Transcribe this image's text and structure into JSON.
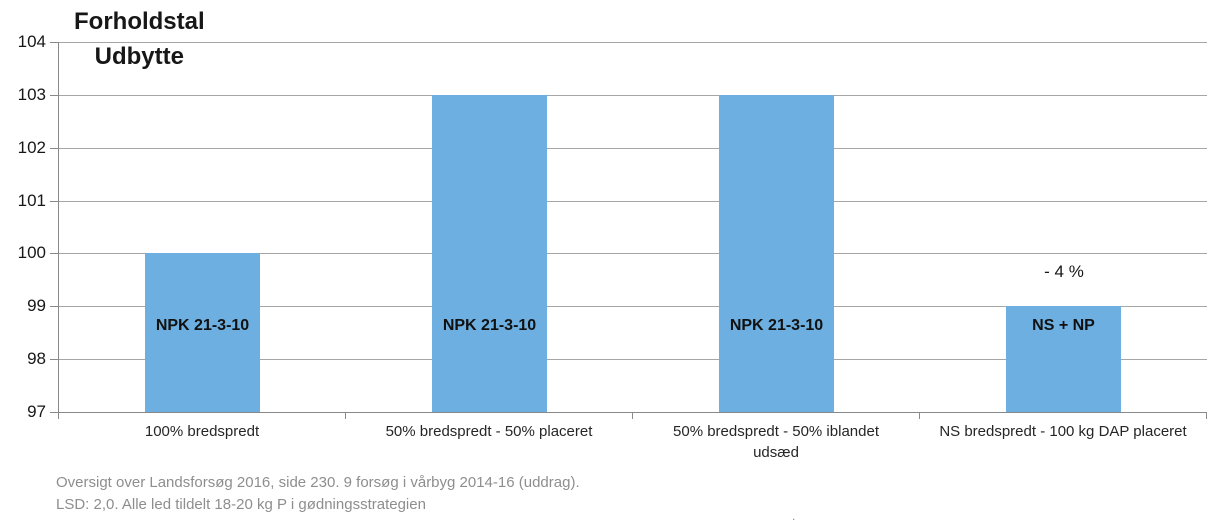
{
  "chart_data": {
    "type": "bar",
    "title_lines": [
      "Forholdstal",
      "Udbytte"
    ],
    "categories": [
      "100% bredspredt",
      "50% bredspredt - 50% placeret",
      "50% bredspredt - 50% iblandet udsæd",
      "NS bredspredt - 100 kg DAP placeret"
    ],
    "values": [
      100,
      103,
      103,
      99
    ],
    "bar_labels": [
      "NPK 21-3-10",
      "NPK 21-3-10",
      "NPK 21-3-10",
      "NS + NP"
    ],
    "annotations": [
      {
        "text": "- 4 %",
        "category_index": 3,
        "y": 99.65
      }
    ],
    "ylim": [
      97,
      104
    ],
    "yticks": [
      97,
      98,
      99,
      100,
      101,
      102,
      103,
      104
    ],
    "xlabel": "",
    "ylabel": "",
    "grid": true,
    "legend": "none",
    "bar_color": "#6dafe0",
    "gridline_color": "#a6a6a6",
    "axis_color": "#898989",
    "text_color": "#171717",
    "footnote_color": "#8e8e8e"
  },
  "footer": {
    "lines": [
      "Oversigt over Landsforsøg 2016, side 230. 9 forsøg i vårbyg 2014-16 (uddrag).",
      "LSD: 2,0. Alle led tildelt 18-20 kg P i gødningsstrategien"
    ],
    "stray_mark": "."
  }
}
